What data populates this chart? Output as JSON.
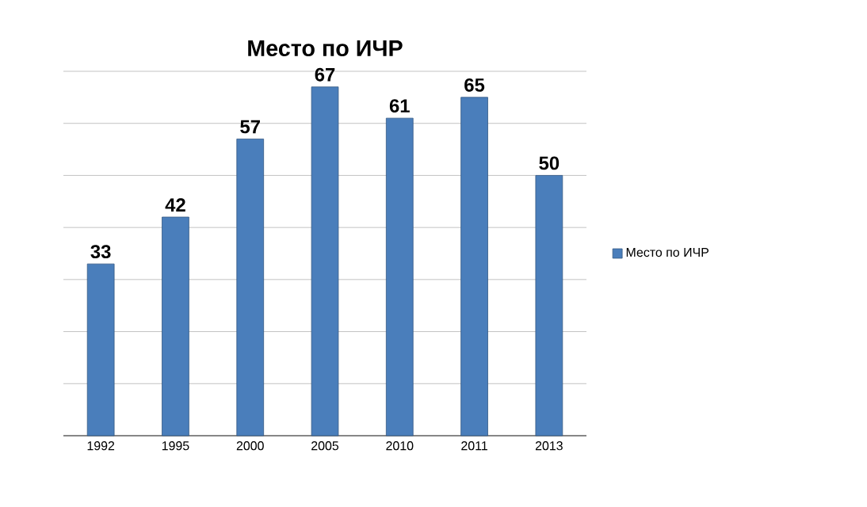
{
  "chart_data": {
    "type": "bar",
    "title": "Место по ИЧР",
    "categories": [
      "1992",
      "1995",
      "2000",
      "2005",
      "2010",
      "2011",
      "2013"
    ],
    "series": [
      {
        "name": "Место по ИЧР",
        "color": "#4a7ebb",
        "values": [
          33,
          42,
          57,
          67,
          61,
          65,
          50
        ]
      }
    ],
    "ylim": [
      0,
      70
    ],
    "yticks": [
      {
        "value": 0,
        "label": null
      },
      {
        "value": 10,
        "label": null
      },
      {
        "value": 20,
        "label": null
      },
      {
        "value": 30,
        "label": null
      },
      {
        "value": 40,
        "label": null
      },
      {
        "value": 50,
        "label": null
      },
      {
        "value": 60,
        "label": null
      },
      {
        "value": 70,
        "label": null
      }
    ],
    "tick_labels": "x",
    "grid": "y",
    "legend": "right",
    "data_labels": true
  }
}
